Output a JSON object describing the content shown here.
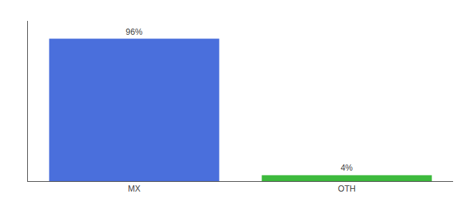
{
  "chart_data": {
    "type": "bar",
    "categories": [
      "MX",
      "OTH"
    ],
    "values": [
      96,
      4
    ],
    "value_labels": [
      "96%",
      "4%"
    ],
    "data_labels": true,
    "colors": [
      "#4a6fdc",
      "#3dba3d"
    ],
    "ylim": [
      0,
      108
    ],
    "yticks": [],
    "tick_labels": "x",
    "grid": false
  }
}
